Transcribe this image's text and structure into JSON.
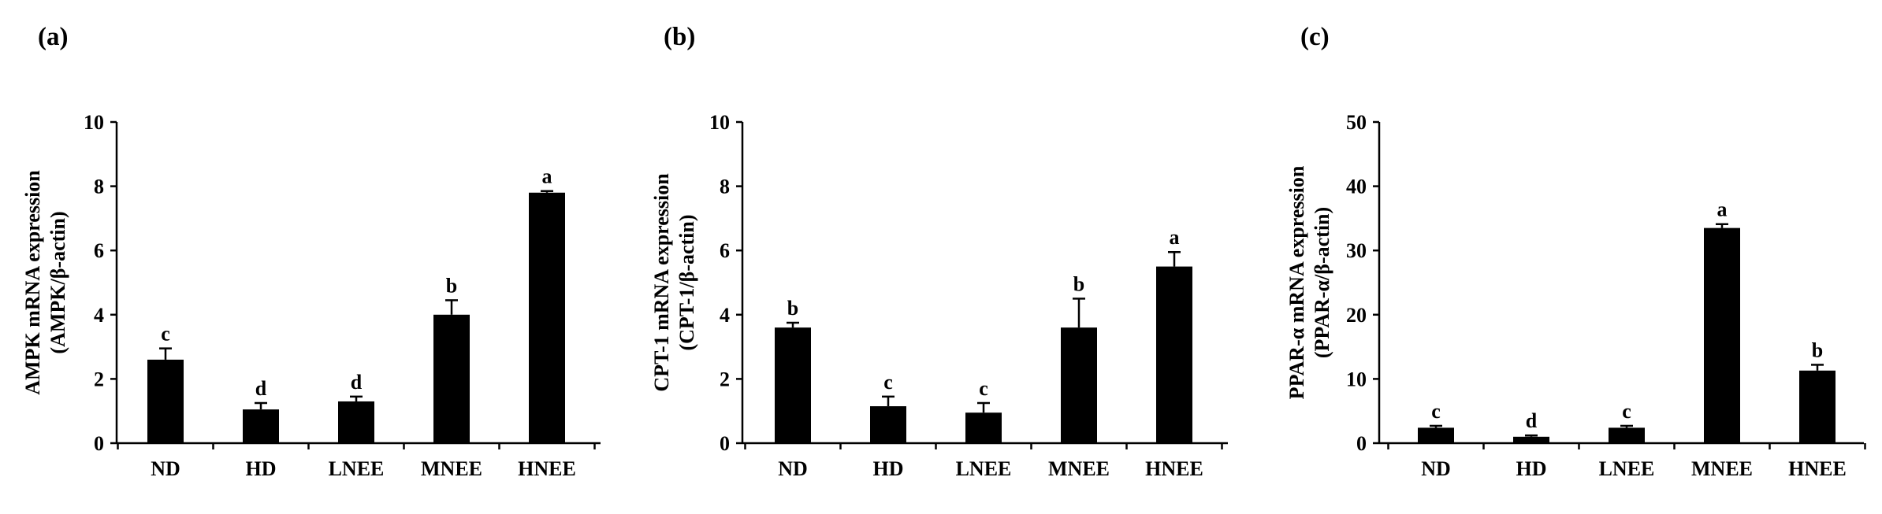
{
  "chart_data": [
    {
      "type": "bar",
      "panel_label": "(a)",
      "ylabel_line1": "AMPK mRNA expression",
      "ylabel_line2": "(AMPK/β-actin)",
      "ylim": [
        0,
        10
      ],
      "yticks": [
        "0",
        "2",
        "4",
        "6",
        "8",
        "10"
      ],
      "categories": [
        "ND",
        "HD",
        "LNEE",
        "MNEE",
        "HNEE"
      ],
      "values": [
        2.6,
        1.05,
        1.3,
        4.0,
        7.8
      ],
      "errors": [
        0.35,
        0.2,
        0.15,
        0.45,
        0.05
      ],
      "significance": [
        "c",
        "d",
        "d",
        "b",
        "a"
      ],
      "bar_color": "#000000"
    },
    {
      "type": "bar",
      "panel_label": "(b)",
      "ylabel_line1": "CPT-1 mRNA expression",
      "ylabel_line2": "(CPT-1/β-actin)",
      "ylim": [
        0,
        10
      ],
      "yticks": [
        "0",
        "2",
        "4",
        "6",
        "8",
        "10"
      ],
      "categories": [
        "ND",
        "HD",
        "LNEE",
        "MNEE",
        "HNEE"
      ],
      "values": [
        3.6,
        1.15,
        0.95,
        3.6,
        5.5
      ],
      "errors": [
        0.15,
        0.3,
        0.3,
        0.9,
        0.45
      ],
      "significance": [
        "b",
        "c",
        "c",
        "b",
        "a"
      ],
      "bar_color": "#000000"
    },
    {
      "type": "bar",
      "panel_label": "(c)",
      "ylabel_line1": "PPAR-α mRNA expression",
      "ylabel_line2": "(PPAR-α/β-actin)",
      "ylim": [
        0,
        50
      ],
      "yticks": [
        "0",
        "10",
        "20",
        "30",
        "40",
        "50"
      ],
      "categories": [
        "ND",
        "HD",
        "LNEE",
        "MNEE",
        "HNEE"
      ],
      "values": [
        2.4,
        1.0,
        2.4,
        33.5,
        11.3
      ],
      "errors": [
        0.3,
        0.2,
        0.3,
        0.6,
        0.9
      ],
      "significance": [
        "c",
        "d",
        "c",
        "a",
        "b"
      ],
      "bar_color": "#000000"
    }
  ]
}
